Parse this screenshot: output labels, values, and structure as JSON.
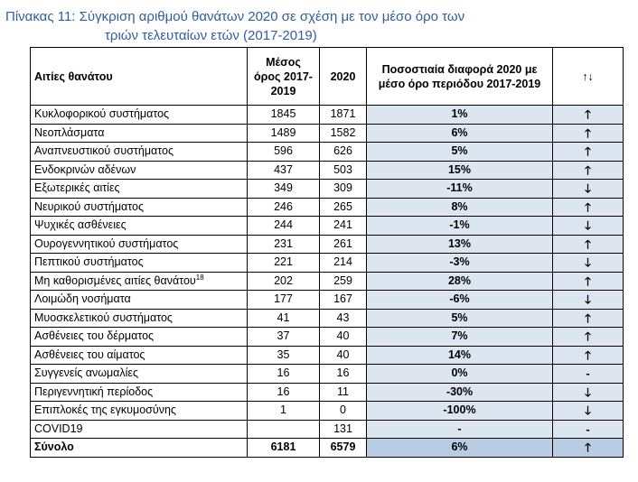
{
  "caption": {
    "line1": "Πίνακας 11: Σύγκριση αριθμού θανάτων 2020 σε σχέση με τον μέσο όρο των",
    "line2": "τριών τελευταίων ετών (2017-2019)"
  },
  "table": {
    "headers": {
      "cause": "Αιτίες θανάτου",
      "avg": "Μέσος όρος 2017-2019",
      "y2020": "2020",
      "pct": "Ποσοστιαία διαφορά 2020 με μέσο όρο περιόδου 2017-2019",
      "trend": "↑↓"
    },
    "rows": [
      {
        "cause": "Κυκλοφορικού συστήματος",
        "sup": "",
        "avg": "1845",
        "y2020": "1871",
        "pct": "1%",
        "arrow": "🡑"
      },
      {
        "cause": "Νεοπλάσματα",
        "sup": "",
        "avg": "1489",
        "y2020": "1582",
        "pct": "6%",
        "arrow": "🡑"
      },
      {
        "cause": "Αναπνευστικού συστήματος",
        "sup": "",
        "avg": "596",
        "y2020": "626",
        "pct": "5%",
        "arrow": "🡑"
      },
      {
        "cause": "Ενδοκρινών αδένων",
        "sup": "",
        "avg": "437",
        "y2020": "503",
        "pct": "15%",
        "arrow": "🡑"
      },
      {
        "cause": "Εξωτερικές αιτίες",
        "sup": "",
        "avg": "349",
        "y2020": "309",
        "pct": "-11%",
        "arrow": "🡓"
      },
      {
        "cause": "Νευρικού συστήματος",
        "sup": "",
        "avg": "246",
        "y2020": "265",
        "pct": "8%",
        "arrow": "🡑"
      },
      {
        "cause": "Ψυχικές ασθένειες",
        "sup": "",
        "avg": "244",
        "y2020": "241",
        "pct": "-1%",
        "arrow": "🡓"
      },
      {
        "cause": "Ουρογεννητικού συστήματος",
        "sup": "",
        "avg": "231",
        "y2020": "261",
        "pct": "13%",
        "arrow": "🡑"
      },
      {
        "cause": "Πεπτικού συστήματος",
        "sup": "",
        "avg": "221",
        "y2020": "214",
        "pct": "-3%",
        "arrow": "🡓"
      },
      {
        "cause": "Μη καθορισμένες αιτίες θανάτου",
        "sup": "18",
        "avg": "202",
        "y2020": "259",
        "pct": "28%",
        "arrow": "🡑"
      },
      {
        "cause": "Λοιμώδη νοσήματα",
        "sup": "",
        "avg": "177",
        "y2020": "167",
        "pct": "-6%",
        "arrow": "🡓"
      },
      {
        "cause": "Μυοσκελετικού συστήματος",
        "sup": "",
        "avg": "41",
        "y2020": "43",
        "pct": "5%",
        "arrow": "🡑"
      },
      {
        "cause": "Ασθένειες του δέρματος",
        "sup": "",
        "avg": "37",
        "y2020": "40",
        "pct": "7%",
        "arrow": "🡑"
      },
      {
        "cause": "Ασθένειες του αίματος",
        "sup": "",
        "avg": "35",
        "y2020": "40",
        "pct": "14%",
        "arrow": "🡑"
      },
      {
        "cause": "Συγγενείς ανωμαλίες",
        "sup": "",
        "avg": "16",
        "y2020": "16",
        "pct": "0%",
        "arrow": "-"
      },
      {
        "cause": "Περιγεννητική περίοδος",
        "sup": "",
        "avg": "16",
        "y2020": "11",
        "pct": "-30%",
        "arrow": "🡓"
      },
      {
        "cause": "Επιπλοκές της εγκυμοσύνης",
        "sup": "",
        "avg": "1",
        "y2020": "0",
        "pct": "-100%",
        "arrow": "🡓"
      },
      {
        "cause": "COVID19",
        "sup": "",
        "avg": "",
        "y2020": "131",
        "pct": "-",
        "arrow": "-"
      }
    ],
    "total": {
      "cause": "Σύνολο",
      "avg": "6181",
      "y2020": "6579",
      "pct": "6%",
      "arrow": "🡑"
    }
  }
}
